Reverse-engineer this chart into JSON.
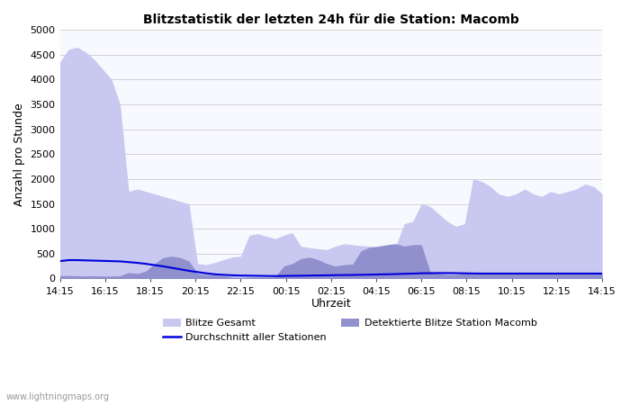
{
  "title": "Blitzstatistik der letzten 24h für die Station: Macomb",
  "ylabel": "Anzahl pro Stunde",
  "xlabel": "Uhrzeit",
  "watermark": "www.lightningmaps.org",
  "xlabels": [
    "14:15",
    "16:15",
    "18:15",
    "20:15",
    "22:15",
    "00:15",
    "02:15",
    "04:15",
    "06:15",
    "08:15",
    "10:15",
    "12:15",
    "14:15"
  ],
  "ylim": [
    0,
    5000
  ],
  "yticks": [
    0,
    500,
    1000,
    1500,
    2000,
    2500,
    3000,
    3500,
    4000,
    4500,
    5000
  ],
  "color_gesamt": "#c8c8f0",
  "color_detektiert": "#9090cc",
  "color_avg": "#0000dd",
  "bg_color": "#f8f8ff",
  "legend_gesamt": "Blitze Gesamt",
  "legend_detektiert": "Detektierte Blitze Station Macomb",
  "legend_avg": "Durchschnitt aller Stationen",
  "blitze_gesamt": [
    4350,
    4600,
    4650,
    4550,
    4400,
    4200,
    4000,
    3500,
    1750,
    1800,
    1750,
    1700,
    1650,
    1600,
    1550,
    1500,
    300,
    280,
    320,
    380,
    430,
    450,
    870,
    900,
    850,
    800,
    870,
    920,
    650,
    620,
    600,
    580,
    650,
    700,
    680,
    660,
    650,
    620,
    630,
    640,
    1100,
    1150,
    1500,
    1450,
    1300,
    1150,
    1050,
    1100,
    2000,
    1950,
    1850,
    1700,
    1650,
    1700,
    1800,
    1700,
    1650,
    1750,
    1700,
    1750,
    1800,
    1900,
    1850,
    1700
  ],
  "detektiert": [
    60,
    60,
    55,
    50,
    55,
    50,
    50,
    55,
    120,
    100,
    150,
    300,
    420,
    450,
    420,
    350,
    100,
    80,
    70,
    60,
    30,
    20,
    30,
    30,
    30,
    30,
    250,
    300,
    400,
    430,
    380,
    300,
    250,
    280,
    290,
    560,
    630,
    650,
    680,
    700,
    650,
    680,
    680,
    140,
    100,
    80,
    80,
    100,
    100,
    100,
    100,
    110,
    100,
    110,
    100,
    100,
    100,
    110,
    100,
    100,
    100,
    110,
    100,
    100
  ],
  "avg_line": [
    350,
    370,
    370,
    365,
    360,
    355,
    350,
    345,
    330,
    315,
    295,
    270,
    245,
    215,
    185,
    155,
    130,
    105,
    85,
    75,
    65,
    60,
    58,
    55,
    52,
    50,
    52,
    55,
    57,
    60,
    62,
    65,
    68,
    70,
    72,
    75,
    78,
    82,
    86,
    90,
    95,
    100,
    105,
    108,
    110,
    110,
    108,
    105,
    102,
    100,
    100,
    100,
    100,
    100,
    100,
    100,
    100,
    100,
    100,
    100,
    100,
    100,
    100,
    100
  ],
  "n_points": 64
}
